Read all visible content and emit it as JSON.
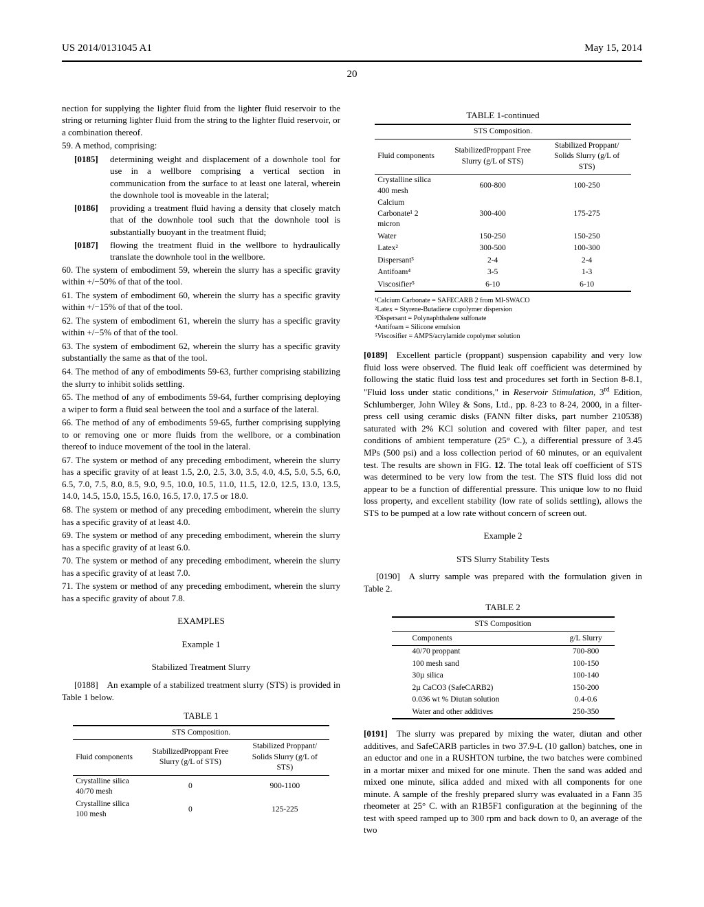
{
  "header": {
    "pub_number": "US 2014/0131045 A1",
    "date": "May 15, 2014",
    "page": "20"
  },
  "colL": {
    "continuation": "nection for supplying the lighter fluid from the lighter fluid reservoir to the string or returning lighter fluid from the string to the lighter fluid reservoir, or a combination thereof.",
    "e59": "59. A method, comprising:",
    "p0185": "[0185]",
    "p0185t": "determining weight and displacement of a downhole tool for use in a wellbore comprising a vertical section in communication from the surface to at least one lateral, wherein the downhole tool is moveable in the lateral;",
    "p0186": "[0186]",
    "p0186t": "providing a treatment fluid having a density that closely match that of the downhole tool such that the downhole tool is substantially buoyant in the treatment fluid;",
    "p0187": "[0187]",
    "p0187t": "flowing the treatment fluid in the wellbore to hydraulically translate the downhole tool in the wellbore.",
    "e60": "60. The system of embodiment 59, wherein the slurry has a specific gravity within +/−50% of that of the tool.",
    "e61": "61. The system of embodiment 60, wherein the slurry has a specific gravity within +/−15% of that of the tool.",
    "e62": "62. The system of embodiment 61, wherein the slurry has a specific gravity within +/−5% of that of the tool.",
    "e63": "63. The system of embodiment 62, wherein the slurry has a specific gravity substantially the same as that of the tool.",
    "e64": "64. The method of any of embodiments 59-63, further comprising stabilizing the slurry to inhibit solids settling.",
    "e65": "65. The method of any of embodiments 59-64, further comprising deploying a wiper to form a fluid seal between the tool and a surface of the lateral.",
    "e66": "66. The method of any of embodiments 59-65, further comprising supplying to or removing one or more fluids from the wellbore, or a combination thereof to induce movement of the tool in the lateral.",
    "e67": "67. The system or method of any preceding embodiment, wherein the slurry has a specific gravity of at least 1.5, 2.0, 2.5, 3.0, 3.5, 4.0, 4.5, 5.0, 5.5, 6.0, 6.5, 7.0, 7.5, 8.0, 8.5, 9.0, 9.5, 10.0, 10.5, 11.0, 11.5, 12.0, 12.5, 13.0, 13.5, 14.0, 14.5, 15.0, 15.5, 16.0, 16.5, 17.0, 17.5 or 18.0.",
    "e68": "68. The system or method of any preceding embodiment, wherein the slurry has a specific gravity of at least 4.0.",
    "e69": "69. The system or method of any preceding embodiment, wherein the slurry has a specific gravity of at least 6.0.",
    "e70": "70. The system or method of any preceding embodiment, wherein the slurry has a specific gravity of at least 7.0.",
    "e71": "71. The system or method of any preceding embodiment, wherein the slurry has a specific gravity of about 7.8.",
    "examples_head": "EXAMPLES",
    "ex1_head": "Example 1",
    "ex1_sub": "Stabilized Treatment Slurry",
    "p0188": "[0188] An example of a stabilized treatment slurry (STS) is provided in Table 1 below.",
    "table1_title": "TABLE 1",
    "table1": {
      "caption": "STS Composition.",
      "head_a": "Fluid components",
      "head_b": "StabilizedProppant Free Slurry (g/L of STS)",
      "head_c": "Stabilized Proppant/ Solids Slurry (g/L of STS)",
      "rows": [
        [
          "Crystalline silica 40/70 mesh",
          "0",
          "900-1100"
        ],
        [
          "Crystalline silica 100 mesh",
          "0",
          "125-225"
        ]
      ]
    }
  },
  "colR": {
    "table1c_title": "TABLE 1-continued",
    "table1c": {
      "caption": "STS Composition.",
      "head_a": "Fluid components",
      "head_b": "StabilizedProppant Free Slurry (g/L of STS)",
      "head_c": "Stabilized Proppant/ Solids Slurry (g/L of STS)",
      "rows": [
        [
          "Crystalline silica 400 mesh",
          "600-800",
          "100-250"
        ],
        [
          "Calcium Carbonate¹ 2 micron",
          "300-400",
          "175-275"
        ],
        [
          "Water",
          "150-250",
          "150-250"
        ],
        [
          "Latex²",
          "300-500",
          "100-300"
        ],
        [
          "Dispersant³",
          "2-4",
          "2-4"
        ],
        [
          "Antifoam⁴",
          "3-5",
          "1-3"
        ],
        [
          "Viscosifier⁵",
          "6-10",
          "6-10"
        ]
      ]
    },
    "fn1": "¹Calcium Carbonate = SAFECARB 2 from MI-SWACO",
    "fn2": "²Latex = Styrene-Butadiene copolymer dispersion",
    "fn3": "³Dispersant = Polynaphthalene sulfonate",
    "fn4": "⁴Antifoam = Silicone emulsion",
    "fn5": "⁵Viscosifier = AMPS/acrylamide copolymer solution",
    "p0189n": "[0189]",
    "p0189": "Excellent particle (proppant) suspension capability and very low fluid loss were observed. The fluid leak off coefficient was determined by following the static fluid loss test and procedures set forth in Section 8-8.1, \"Fluid loss under static conditions,\" in Reservoir Stimulation, 3ʳᵈ Edition, Schlumberger, John Wiley & Sons, Ltd., pp. 8-23 to 8-24, 2000, in a filter-press cell using ceramic disks (FANN filter disks, part number 210538) saturated with 2% KCl solution and covered with filter paper, and test conditions of ambient temperature (25° C.), a differential pressure of 3.45 MPs (500 psi) and a loss collection period of 60 minutes, or an equivalent test. The results are shown in FIG. 12. The total leak off coefficient of STS was determined to be very low from the test. The STS fluid loss did not appear to be a function of differential pressure. This unique low to no fluid loss property, and excellent stability (low rate of solids settling), allows the STS to be pumped at a low rate without concern of screen out.",
    "ex2_head": "Example 2",
    "ex2_sub": "STS Slurry Stability Tests",
    "p0190": "[0190] A slurry sample was prepared with the formulation given in Table 2.",
    "table2_title": "TABLE 2",
    "table2": {
      "caption": "STS Composition",
      "head_a": "Components",
      "head_b": "g/L Slurry",
      "rows": [
        [
          "40/70 proppant",
          "700-800"
        ],
        [
          "100 mesh sand",
          "100-150"
        ],
        [
          "30µ silica",
          "100-140"
        ],
        [
          "2µ CaCO3 (SafeCARB2)",
          "150-200"
        ],
        [
          "0.036 wt % Diutan solution",
          "0.4-0.6"
        ],
        [
          "Water and other additives",
          "250-350"
        ]
      ]
    },
    "p0191n": "[0191]",
    "p0191": "The slurry was prepared by mixing the water, diutan and other additives, and SafeCARB particles in two 37.9-L (10 gallon) batches, one in an eductor and one in a RUSHTON turbine, the two batches were combined in a mortar mixer and mixed for one minute. Then the sand was added and mixed one minute, silica added and mixed with all components for one minute. A sample of the freshly prepared slurry was evaluated in a Fann 35 rheometer at 25° C. with an R1B5F1 configuration at the beginning of the test with speed ramped up to 300 rpm and back down to 0, an average of the two"
  }
}
